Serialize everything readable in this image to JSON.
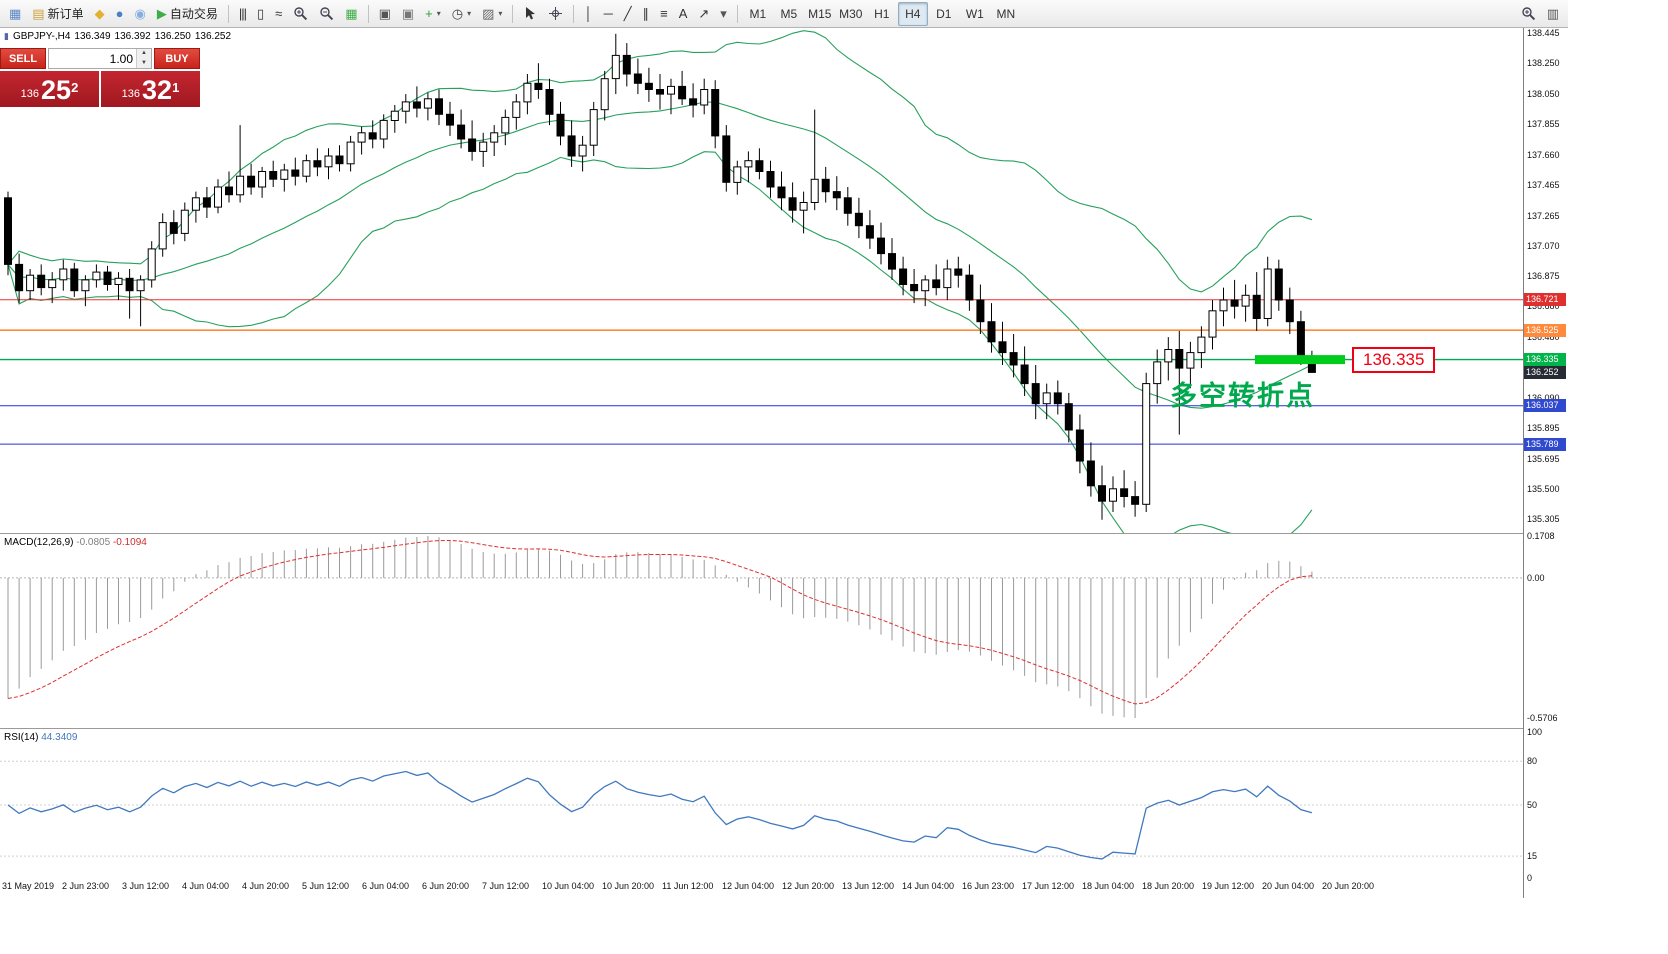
{
  "toolbar": {
    "items": [
      {
        "t": "icon",
        "name": "chart-window-icon",
        "g": "▦",
        "c": "#5b87c5"
      },
      {
        "t": "btn",
        "name": "new-order-button",
        "g": "▤",
        "c": "#caa23a",
        "label": "新订单"
      },
      {
        "t": "icon",
        "name": "horn-icon",
        "g": "◆",
        "c": "#e3b033"
      },
      {
        "t": "icon",
        "name": "metaquotes-globe-icon",
        "g": "●",
        "c": "#4a80c8"
      },
      {
        "t": "icon",
        "name": "community-icon",
        "g": "◉",
        "c": "#86aede"
      },
      {
        "t": "btn",
        "name": "autotrade-button",
        "g": "▶",
        "c": "#3fae49",
        "label": "自动交易"
      },
      {
        "t": "sep"
      },
      {
        "t": "icon",
        "name": "bar-chart-type-icon",
        "g": "|||",
        "c": "#333"
      },
      {
        "t": "icon",
        "name": "candlestick-chart-type-icon",
        "g": "▯",
        "c": "#333"
      },
      {
        "t": "icon",
        "name": "line-chart-type-icon",
        "g": "≈",
        "c": "#333"
      },
      {
        "t": "icon",
        "name": "zoom-in-icon",
        "svg": "magp"
      },
      {
        "t": "icon",
        "name": "zoom-out-icon",
        "svg": "magm"
      },
      {
        "t": "icon",
        "name": "tile-windows-icon",
        "g": "▦",
        "c": "#3fae49"
      },
      {
        "t": "sep"
      },
      {
        "t": "icon",
        "name": "auto-scroll-icon",
        "g": "▣",
        "c": "#555"
      },
      {
        "t": "icon",
        "name": "chart-shift-icon",
        "g": "▣",
        "c": "#777"
      },
      {
        "t": "btn",
        "name": "indicators-button",
        "g": "+",
        "c": "#2e9e42",
        "caret": true
      },
      {
        "t": "btn",
        "name": "periods-button",
        "g": "◷",
        "c": "#444",
        "caret": true
      },
      {
        "t": "btn",
        "name": "templates-button",
        "g": "▨",
        "c": "#666",
        "caret": true
      },
      {
        "t": "sep"
      },
      {
        "t": "icon",
        "name": "cursor-icon",
        "svg": "cursor"
      },
      {
        "t": "icon",
        "name": "crosshair-icon",
        "svg": "cross"
      },
      {
        "t": "sep"
      },
      {
        "t": "icon",
        "name": "vertical-line-icon",
        "g": "│",
        "c": "#333"
      },
      {
        "t": "icon",
        "name": "horizontal-line-icon",
        "g": "─",
        "c": "#333"
      },
      {
        "t": "icon",
        "name": "trendline-icon",
        "g": "╱",
        "c": "#333"
      },
      {
        "t": "icon",
        "name": "channel-icon",
        "g": "∥",
        "c": "#333"
      },
      {
        "t": "icon",
        "name": "fibonacci-icon",
        "g": "≡",
        "c": "#333"
      },
      {
        "t": "icon",
        "name": "text-tool-icon",
        "g": "A",
        "c": "#333"
      },
      {
        "t": "icon",
        "name": "arrows-tool-icon",
        "g": "↗",
        "c": "#333"
      },
      {
        "t": "btn",
        "name": "shapes-button",
        "g": "▾",
        "c": "#555"
      },
      {
        "t": "sep"
      },
      {
        "t": "tf",
        "name": "timeframe-m1",
        "label": "M1"
      },
      {
        "t": "tf",
        "name": "timeframe-m5",
        "label": "M5"
      },
      {
        "t": "tf",
        "name": "timeframe-m15",
        "label": "M15"
      },
      {
        "t": "tf",
        "name": "timeframe-m30",
        "label": "M30"
      },
      {
        "t": "tf",
        "name": "timeframe-h1",
        "label": "H1"
      },
      {
        "t": "tf",
        "name": "timeframe-h4",
        "label": "H4",
        "active": true
      },
      {
        "t": "tf",
        "name": "timeframe-d1",
        "label": "D1"
      },
      {
        "t": "tf",
        "name": "timeframe-w1",
        "label": "W1"
      },
      {
        "t": "tf",
        "name": "timeframe-mn",
        "label": "MN"
      },
      {
        "t": "spacer"
      },
      {
        "t": "icon",
        "name": "search-icon",
        "svg": "magp"
      },
      {
        "t": "icon",
        "name": "data-window-icon",
        "g": "▥",
        "c": "#555"
      }
    ]
  },
  "symbol_header": {
    "title": "GBPJPY-,H4",
    "open": "136.349",
    "high": "136.392",
    "low": "136.250",
    "close": "136.252"
  },
  "trade_panel": {
    "sell_label": "SELL",
    "buy_label": "BUY",
    "volume": "1.00",
    "bid": {
      "small": "136",
      "big": "25",
      "sup": "2"
    },
    "ask": {
      "small": "136",
      "big": "32",
      "sup": "1"
    }
  },
  "price_lines": [
    {
      "price": 136.721,
      "label": "136.721",
      "color": "#f23030",
      "badge_bg": "#e02f2f",
      "width": 1
    },
    {
      "price": 136.525,
      "label": "136.525",
      "color": "#ff8a3c",
      "badge_bg": "#ff8a3c",
      "width": 1.6
    },
    {
      "price": 136.335,
      "label": "136.335",
      "color": "#00a84e",
      "badge_bg": "#00b44a",
      "width": 1.4
    },
    {
      "price": 136.037,
      "label": "136.037",
      "color": "#2330d8",
      "badge_bg": "#2f49cf",
      "width": 1
    },
    {
      "price": 135.789,
      "label": "135.789",
      "color": "#2330d8",
      "badge_bg": "#2f49cf",
      "width": 1
    }
  ],
  "current_price": {
    "value": "136.252",
    "badge_bg": "#272b36"
  },
  "annotations": {
    "turning_point_text": "多空转折点",
    "turning_point_color": "#00a84e",
    "price_callout": "136.335",
    "callout_color": "#f00012",
    "highlight_color": "#00cc1e",
    "highlight_price": 136.335
  },
  "indicators": {
    "macd": {
      "label": "MACD(12,26,9)",
      "value1": "-0.0805",
      "value2": "-0.1094",
      "axis": [
        "0.1708",
        "0.00",
        "-0.5706"
      ],
      "fast": 12,
      "slow": 26,
      "signal": 9
    },
    "rsi": {
      "label": "RSI(14)",
      "value": "44.3409",
      "axis": [
        "100",
        "80",
        "50",
        "15",
        "0"
      ],
      "levels": [
        80,
        50,
        15
      ],
      "period": 14
    }
  },
  "chart_data": {
    "type": "candlestick",
    "symbol": "GBPJPY",
    "timeframe": "H4",
    "price_range": {
      "max": 138.445,
      "min": 135.305
    },
    "bollinger": {
      "period": 20,
      "deviation": 2,
      "color": "#27a05d"
    },
    "y_ticks": [
      "138.445",
      "138.250",
      "138.050",
      "137.855",
      "137.660",
      "137.465",
      "137.265",
      "137.070",
      "136.875",
      "136.680",
      "136.480",
      "136.285",
      "136.090",
      "135.895",
      "135.695",
      "135.500",
      "135.305"
    ],
    "x_labels": [
      "31 May 2019",
      "2 Jun 23:00",
      "3 Jun 12:00",
      "4 Jun 04:00",
      "4 Jun 20:00",
      "5 Jun 12:00",
      "6 Jun 04:00",
      "6 Jun 20:00",
      "7 Jun 12:00",
      "10 Jun 04:00",
      "10 Jun 20:00",
      "11 Jun 12:00",
      "12 Jun 04:00",
      "12 Jun 20:00",
      "13 Jun 12:00",
      "14 Jun 04:00",
      "16 Jun 23:00",
      "17 Jun 12:00",
      "18 Jun 04:00",
      "18 Jun 20:00",
      "19 Jun 12:00",
      "20 Jun 04:00",
      "20 Jun 20:00"
    ],
    "candles": [
      [
        137.38,
        137.42,
        136.88,
        136.95
      ],
      [
        136.95,
        137.02,
        136.7,
        136.78
      ],
      [
        136.78,
        136.92,
        136.72,
        136.88
      ],
      [
        136.88,
        136.95,
        136.75,
        136.8
      ],
      [
        136.8,
        136.9,
        136.7,
        136.85
      ],
      [
        136.85,
        136.98,
        136.78,
        136.92
      ],
      [
        136.92,
        136.96,
        136.74,
        136.78
      ],
      [
        136.78,
        136.88,
        136.68,
        136.85
      ],
      [
        136.85,
        136.95,
        136.8,
        136.9
      ],
      [
        136.9,
        136.94,
        136.78,
        136.82
      ],
      [
        136.82,
        136.9,
        136.72,
        136.86
      ],
      [
        136.86,
        136.92,
        136.6,
        136.78
      ],
      [
        136.78,
        136.88,
        136.55,
        136.85
      ],
      [
        136.85,
        137.1,
        136.8,
        137.05
      ],
      [
        137.05,
        137.28,
        137.0,
        137.22
      ],
      [
        137.22,
        137.3,
        137.08,
        137.15
      ],
      [
        137.15,
        137.35,
        137.1,
        137.3
      ],
      [
        137.3,
        137.42,
        137.22,
        137.38
      ],
      [
        137.38,
        137.45,
        137.25,
        137.32
      ],
      [
        137.32,
        137.5,
        137.28,
        137.45
      ],
      [
        137.45,
        137.55,
        137.35,
        137.4
      ],
      [
        137.4,
        137.85,
        137.35,
        137.52
      ],
      [
        137.52,
        137.6,
        137.4,
        137.45
      ],
      [
        137.45,
        137.58,
        137.38,
        137.55
      ],
      [
        137.55,
        137.62,
        137.45,
        137.5
      ],
      [
        137.5,
        137.6,
        137.42,
        137.56
      ],
      [
        137.56,
        137.64,
        137.46,
        137.52
      ],
      [
        137.52,
        137.66,
        137.48,
        137.62
      ],
      [
        137.62,
        137.7,
        137.52,
        137.58
      ],
      [
        137.58,
        137.7,
        137.5,
        137.65
      ],
      [
        137.65,
        137.72,
        137.55,
        137.6
      ],
      [
        137.6,
        137.78,
        137.55,
        137.74
      ],
      [
        137.74,
        137.84,
        137.66,
        137.8
      ],
      [
        137.8,
        137.88,
        137.7,
        137.76
      ],
      [
        137.76,
        137.92,
        137.7,
        137.88
      ],
      [
        137.88,
        137.98,
        137.8,
        137.94
      ],
      [
        137.94,
        138.05,
        137.86,
        138.0
      ],
      [
        138.0,
        138.1,
        137.9,
        137.96
      ],
      [
        137.96,
        138.06,
        137.88,
        138.02
      ],
      [
        138.02,
        138.08,
        137.85,
        137.92
      ],
      [
        137.92,
        138.0,
        137.78,
        137.85
      ],
      [
        137.85,
        137.95,
        137.7,
        137.76
      ],
      [
        137.76,
        137.88,
        137.62,
        137.68
      ],
      [
        137.68,
        137.8,
        137.58,
        137.74
      ],
      [
        137.74,
        137.85,
        137.65,
        137.8
      ],
      [
        137.8,
        137.95,
        137.72,
        137.9
      ],
      [
        137.9,
        138.05,
        137.82,
        138.0
      ],
      [
        138.0,
        138.18,
        137.92,
        138.12
      ],
      [
        138.12,
        138.25,
        138.02,
        138.08
      ],
      [
        138.08,
        138.15,
        137.85,
        137.92
      ],
      [
        137.92,
        138.0,
        137.72,
        137.78
      ],
      [
        137.78,
        137.88,
        137.58,
        137.65
      ],
      [
        137.65,
        137.78,
        137.55,
        137.72
      ],
      [
        137.72,
        138.0,
        137.65,
        137.95
      ],
      [
        137.95,
        138.2,
        137.88,
        138.15
      ],
      [
        138.15,
        138.44,
        138.05,
        138.3
      ],
      [
        138.3,
        138.38,
        138.1,
        138.18
      ],
      [
        138.18,
        138.28,
        138.05,
        138.12
      ],
      [
        138.12,
        138.22,
        138.0,
        138.08
      ],
      [
        138.08,
        138.18,
        137.95,
        138.05
      ],
      [
        138.05,
        138.15,
        137.92,
        138.1
      ],
      [
        138.1,
        138.2,
        137.98,
        138.02
      ],
      [
        138.02,
        138.12,
        137.9,
        137.98
      ],
      [
        137.98,
        138.15,
        137.92,
        138.08
      ],
      [
        138.08,
        138.14,
        137.7,
        137.78
      ],
      [
        137.78,
        137.85,
        137.42,
        137.48
      ],
      [
        137.48,
        137.62,
        137.4,
        137.58
      ],
      [
        137.58,
        137.68,
        137.48,
        137.62
      ],
      [
        137.62,
        137.7,
        137.5,
        137.55
      ],
      [
        137.55,
        137.62,
        137.38,
        137.45
      ],
      [
        137.45,
        137.55,
        137.3,
        137.38
      ],
      [
        137.38,
        137.48,
        137.22,
        137.3
      ],
      [
        137.3,
        137.42,
        137.15,
        137.35
      ],
      [
        137.35,
        137.95,
        137.3,
        137.5
      ],
      [
        137.5,
        137.58,
        137.35,
        137.42
      ],
      [
        137.42,
        137.52,
        137.3,
        137.38
      ],
      [
        137.38,
        137.45,
        137.2,
        137.28
      ],
      [
        137.28,
        137.38,
        137.12,
        137.2
      ],
      [
        137.2,
        137.3,
        137.05,
        137.12
      ],
      [
        137.12,
        137.22,
        136.95,
        137.02
      ],
      [
        137.02,
        137.12,
        136.85,
        136.92
      ],
      [
        136.92,
        137.0,
        136.75,
        136.82
      ],
      [
        136.82,
        136.92,
        136.7,
        136.78
      ],
      [
        136.78,
        136.88,
        136.68,
        136.85
      ],
      [
        136.85,
        136.95,
        136.75,
        136.8
      ],
      [
        136.8,
        136.98,
        136.72,
        136.92
      ],
      [
        136.92,
        137.0,
        136.8,
        136.88
      ],
      [
        136.88,
        136.95,
        136.65,
        136.72
      ],
      [
        136.72,
        136.82,
        136.5,
        136.58
      ],
      [
        136.58,
        136.7,
        136.38,
        136.45
      ],
      [
        136.45,
        136.58,
        136.3,
        136.38
      ],
      [
        136.38,
        136.5,
        136.22,
        136.3
      ],
      [
        136.3,
        136.42,
        136.1,
        136.18
      ],
      [
        136.18,
        136.3,
        135.95,
        136.05
      ],
      [
        136.05,
        136.18,
        135.95,
        136.12
      ],
      [
        136.12,
        136.2,
        135.98,
        136.05
      ],
      [
        136.05,
        136.12,
        135.8,
        135.88
      ],
      [
        135.88,
        135.98,
        135.6,
        135.68
      ],
      [
        135.68,
        135.8,
        135.45,
        135.52
      ],
      [
        135.52,
        135.65,
        135.3,
        135.42
      ],
      [
        135.42,
        135.58,
        135.35,
        135.5
      ],
      [
        135.5,
        135.62,
        135.38,
        135.45
      ],
      [
        135.45,
        135.55,
        135.32,
        135.4
      ],
      [
        135.4,
        136.25,
        135.35,
        136.18
      ],
      [
        136.18,
        136.4,
        136.05,
        136.32
      ],
      [
        136.32,
        136.48,
        136.2,
        136.4
      ],
      [
        136.4,
        136.52,
        135.85,
        136.28
      ],
      [
        136.28,
        136.45,
        136.15,
        136.38
      ],
      [
        136.38,
        136.55,
        136.28,
        136.48
      ],
      [
        136.48,
        136.72,
        136.4,
        136.65
      ],
      [
        136.65,
        136.8,
        136.55,
        136.72
      ],
      [
        136.72,
        136.85,
        136.6,
        136.68
      ],
      [
        136.68,
        136.82,
        136.58,
        136.75
      ],
      [
        136.75,
        136.9,
        136.52,
        136.6
      ],
      [
        136.6,
        137.0,
        136.55,
        136.92
      ],
      [
        136.92,
        136.98,
        136.65,
        136.72
      ],
      [
        136.72,
        136.8,
        136.5,
        136.58
      ],
      [
        136.58,
        136.65,
        136.3,
        136.35
      ],
      [
        136.349,
        136.392,
        136.25,
        136.252
      ]
    ]
  }
}
